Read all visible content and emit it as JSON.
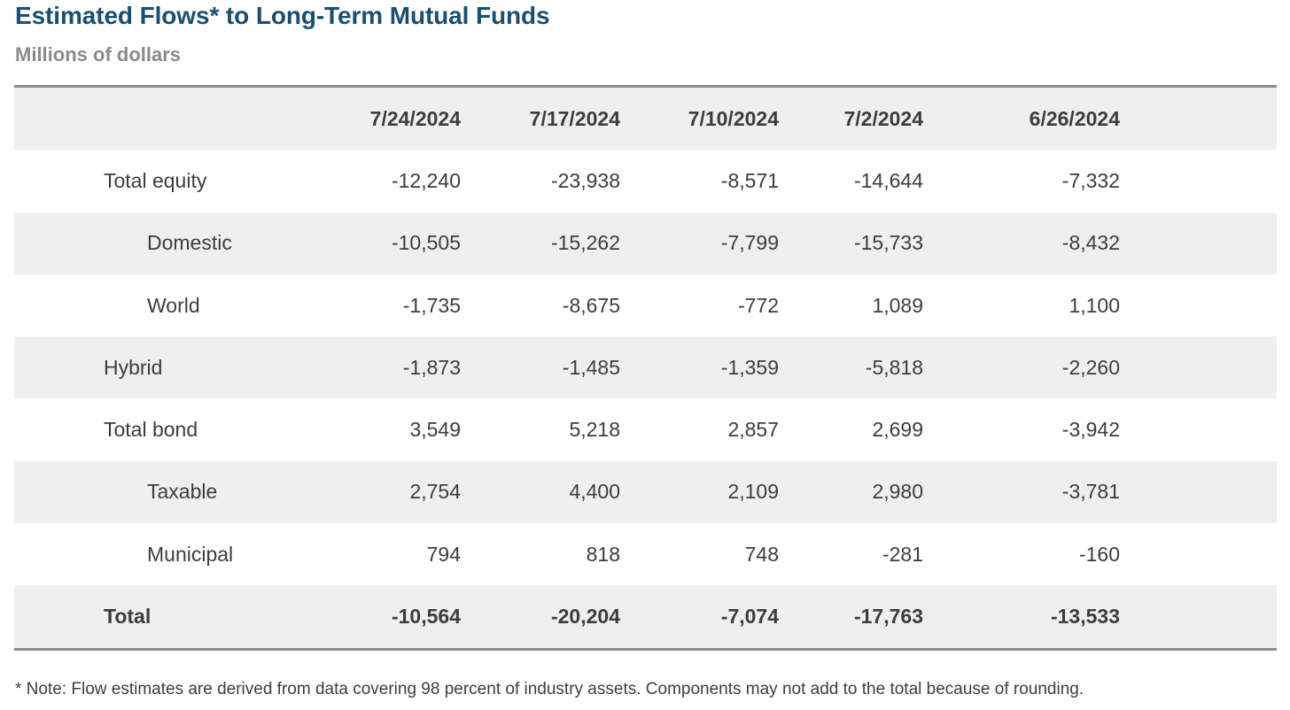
{
  "title": "Estimated Flows* to Long-Term Mutual Funds",
  "subtitle": "Millions of dollars",
  "columns": [
    "7/24/2024",
    "7/17/2024",
    "7/10/2024",
    "7/2/2024",
    "6/26/2024"
  ],
  "rows": [
    {
      "label": "Total equity",
      "values": [
        "-12,240",
        "-23,938",
        "-8,571",
        "-14,644",
        "-7,332"
      ]
    },
    {
      "label": "Domestic",
      "values": [
        "-10,505",
        "-15,262",
        "-7,799",
        "-15,733",
        "-8,432"
      ]
    },
    {
      "label": "World",
      "values": [
        "-1,735",
        "-8,675",
        "-772",
        "1,089",
        "1,100"
      ]
    },
    {
      "label": "Hybrid",
      "values": [
        "-1,873",
        "-1,485",
        "-1,359",
        "-5,818",
        "-2,260"
      ]
    },
    {
      "label": "Total bond",
      "values": [
        "3,549",
        "5,218",
        "2,857",
        "2,699",
        "-3,942"
      ]
    },
    {
      "label": "Taxable",
      "values": [
        "2,754",
        "4,400",
        "2,109",
        "2,980",
        "-3,781"
      ]
    },
    {
      "label": "Municipal",
      "values": [
        "794",
        "818",
        "748",
        "-281",
        "-160"
      ]
    },
    {
      "label": "Total",
      "values": [
        "-10,564",
        "-20,204",
        "-7,074",
        "-17,763",
        "-13,533"
      ]
    }
  ],
  "footnote": "* Note: Flow estimates are derived from data covering 98 percent of industry assets. Components may not add to the total because of rounding."
}
